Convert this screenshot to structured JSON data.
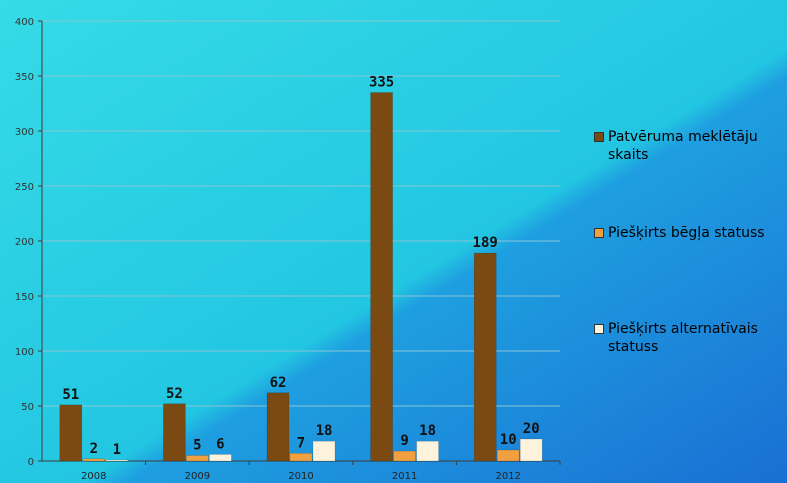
{
  "colors": {
    "background_light": "#2fd4e4",
    "background_dark": "#1c7fd9",
    "axis": "#3c3c3c",
    "grid": "#86c6d6"
  },
  "chart_data": {
    "type": "bar",
    "title": "",
    "xlabel": "",
    "ylabel": "",
    "categories": [
      "2008",
      "2009",
      "2010",
      "2011",
      "2012"
    ],
    "ylim": [
      0,
      400
    ],
    "yticks": [
      0,
      50,
      100,
      150,
      200,
      250,
      300,
      350,
      400
    ],
    "grid": true,
    "legend_position": "right",
    "series": [
      {
        "name": "Patvēruma meklētāju skaits",
        "values": [
          51,
          52,
          62,
          335,
          189
        ],
        "color": "#7b4a12"
      },
      {
        "name": "Piešķirts bēgļa statuss",
        "values": [
          2,
          5,
          7,
          9,
          10
        ],
        "color": "#f0a040"
      },
      {
        "name": "Piešķirts alternatīvais statuss",
        "values": [
          1,
          6,
          18,
          18,
          20
        ],
        "color": "#fdf3dc"
      }
    ]
  }
}
